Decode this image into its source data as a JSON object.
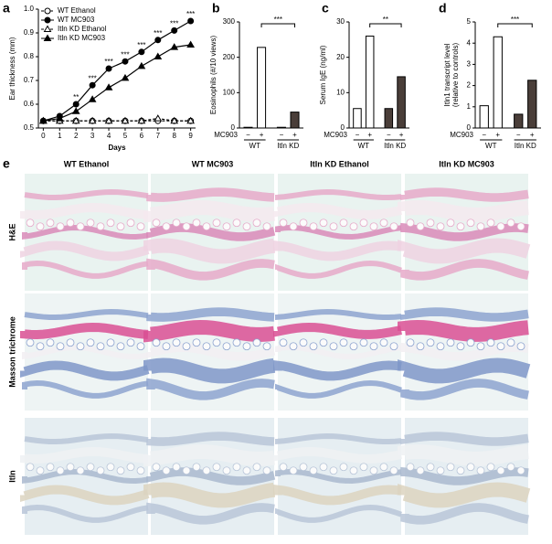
{
  "chart_data": [
    {
      "type": "line",
      "panel_label": "a",
      "xlabel": "Days",
      "ylabel": "Ear thickness (mm)",
      "x": [
        0,
        1,
        2,
        3,
        4,
        5,
        6,
        7,
        8,
        9
      ],
      "xlim": [
        -0.3,
        9.3
      ],
      "xticks": [
        0,
        1,
        2,
        3,
        4,
        5,
        6,
        7,
        8,
        9
      ],
      "ylim": [
        0.5,
        1.0
      ],
      "yticks": [
        0.5,
        0.6,
        0.7,
        0.8,
        0.9,
        {
          "value": 1.0,
          "label": "1.0"
        }
      ],
      "series": [
        {
          "name": "WT Ethanol",
          "color": "#000000",
          "marker": "circle",
          "filled": false,
          "dashed": true,
          "values": [
            0.53,
            0.53,
            0.53,
            0.53,
            0.53,
            0.53,
            0.53,
            0.53,
            0.53,
            0.53
          ]
        },
        {
          "name": "WT MC903",
          "color": "#000000",
          "marker": "circle",
          "filled": true,
          "dashed": false,
          "values": [
            0.53,
            0.55,
            0.6,
            0.68,
            0.75,
            0.78,
            0.82,
            0.87,
            0.91,
            0.95
          ]
        },
        {
          "name": "Itln KD Ethanol",
          "color": "#000000",
          "marker": "triangle",
          "filled": false,
          "dashed": true,
          "values": [
            0.53,
            0.53,
            0.53,
            0.53,
            0.53,
            0.53,
            0.53,
            0.54,
            0.53,
            0.53
          ]
        },
        {
          "name": "Itln KD MC903",
          "color": "#000000",
          "marker": "triangle",
          "filled": true,
          "dashed": false,
          "values": [
            0.53,
            0.54,
            0.57,
            0.62,
            0.67,
            0.71,
            0.76,
            0.8,
            0.84,
            0.85
          ]
        }
      ],
      "annotations": [
        {
          "x": 2,
          "text": "**"
        },
        {
          "x": 3,
          "text": "***"
        },
        {
          "x": 4,
          "text": "***"
        },
        {
          "x": 5,
          "text": "***"
        },
        {
          "x": 6,
          "text": "***"
        },
        {
          "x": 7,
          "text": "***"
        },
        {
          "x": 8,
          "text": "***"
        },
        {
          "x": 9,
          "text": "***"
        }
      ]
    },
    {
      "type": "bar",
      "panel_label": "b",
      "ylabel": "Eosinophils (#/10 views)",
      "row_label": "MC903",
      "categories": [
        "−",
        "+",
        "−",
        "+"
      ],
      "groups": [
        "WT",
        "Itln KD"
      ],
      "values": [
        2,
        228,
        2,
        45
      ],
      "colors": [
        "#ffffff",
        "#ffffff",
        "#4a3e39",
        "#4a3e39"
      ],
      "ylim": [
        0,
        300
      ],
      "yticks": [
        0,
        100,
        200,
        300
      ],
      "annotation": "***"
    },
    {
      "type": "bar",
      "panel_label": "c",
      "ylabel": "Serum IgE (ng/ml)",
      "row_label": "MC903",
      "categories": [
        "−",
        "+",
        "−",
        "+"
      ],
      "groups": [
        "WT",
        "Itln KD"
      ],
      "values": [
        5.5,
        26,
        5.5,
        14.5
      ],
      "colors": [
        "#ffffff",
        "#ffffff",
        "#4a3e39",
        "#4a3e39"
      ],
      "ylim": [
        0,
        30
      ],
      "yticks": [
        0,
        10,
        20,
        30
      ],
      "annotation": "**"
    },
    {
      "type": "bar",
      "panel_label": "d",
      "ylabel": [
        "Itln1 transcript level",
        "(relative to controls)"
      ],
      "row_label": "MC903",
      "categories": [
        "−",
        "+",
        "−",
        "+"
      ],
      "groups": [
        "WT",
        "Itln KD"
      ],
      "values": [
        1.05,
        4.3,
        0.65,
        2.25
      ],
      "colors": [
        "#ffffff",
        "#ffffff",
        "#4a3e39",
        "#4a3e39"
      ],
      "ylim": [
        0,
        5
      ],
      "yticks": [
        0,
        1,
        2,
        3,
        4,
        5
      ],
      "annotation": "***"
    }
  ],
  "histology": {
    "panel_label": "e",
    "columns": [
      "WT Ethanol",
      "WT MC903",
      "Itln KD Ethanol",
      "Itln KD MC903"
    ],
    "rows": [
      "H&E",
      "Masson trichrome",
      "Itln"
    ]
  }
}
